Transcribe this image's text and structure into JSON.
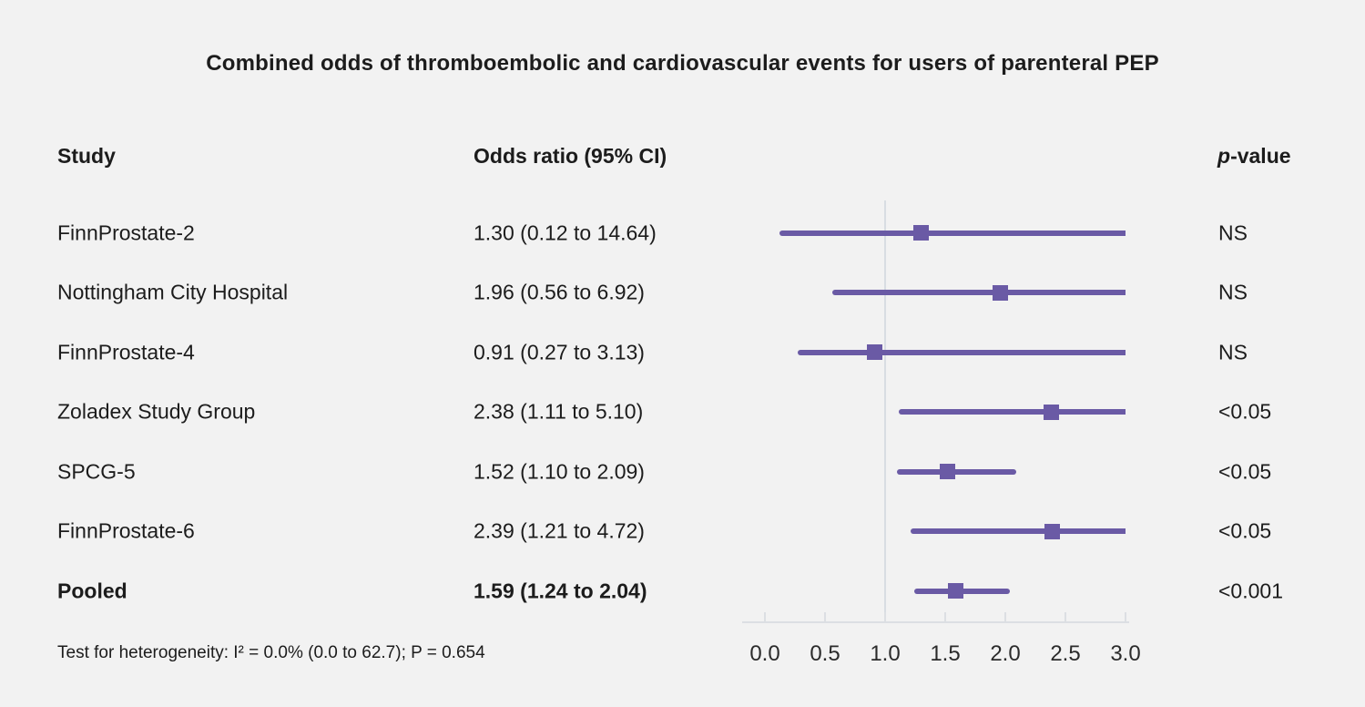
{
  "title": "Combined odds of thromboembolic and cardiovascular events for users of parenteral PEP",
  "columns": {
    "study": "Study",
    "odds": "Odds ratio (95% CI)",
    "pvalue_italic": "p",
    "pvalue_rest": "-value"
  },
  "footnote": "Test for heterogeneity: I² = 0.0% (0.0 to 62.7); P = 0.654",
  "chart_data": {
    "type": "forest",
    "title": "Combined odds of thromboembolic and cardiovascular events for users of parenteral PEP",
    "xlim": [
      0.0,
      3.0
    ],
    "x_ticks": [
      0.0,
      0.5,
      1.0,
      1.5,
      2.0,
      2.5,
      3.0
    ],
    "tick_labels": [
      "0.0",
      "0.5",
      "1.0",
      "1.5",
      "2.0",
      "2.5",
      "3.0"
    ],
    "reference_line": 1.0,
    "grid": false,
    "colors": {
      "line": "#6a5aa5",
      "marker": "#6a5aa5",
      "reference": "#d8dde2",
      "axis": "#dcdfe3",
      "background": "#f2f2f2"
    },
    "studies": [
      {
        "study": "FinnProstate-2",
        "or_text": "1.30 (0.12 to 14.64)",
        "estimate": 1.3,
        "ci_lower": 0.12,
        "ci_upper": 14.64,
        "p_value": "NS",
        "bold": false
      },
      {
        "study": "Nottingham City Hospital",
        "or_text": "1.96 (0.56 to 6.92)",
        "estimate": 1.96,
        "ci_lower": 0.56,
        "ci_upper": 6.92,
        "p_value": "NS",
        "bold": false
      },
      {
        "study": "FinnProstate-4",
        "or_text": "0.91 (0.27 to 3.13)",
        "estimate": 0.91,
        "ci_lower": 0.27,
        "ci_upper": 3.13,
        "p_value": "NS",
        "bold": false
      },
      {
        "study": "Zoladex Study Group",
        "or_text": "2.38 (1.11 to 5.10)",
        "estimate": 2.38,
        "ci_lower": 1.11,
        "ci_upper": 5.1,
        "p_value": "<0.05",
        "bold": false
      },
      {
        "study": "SPCG-5",
        "or_text": "1.52 (1.10 to 2.09)",
        "estimate": 1.52,
        "ci_lower": 1.1,
        "ci_upper": 2.09,
        "p_value": "<0.05",
        "bold": false
      },
      {
        "study": "FinnProstate-6",
        "or_text": "2.39 (1.21 to 4.72)",
        "estimate": 2.39,
        "ci_lower": 1.21,
        "ci_upper": 4.72,
        "p_value": "<0.05",
        "bold": false
      },
      {
        "study": "Pooled",
        "or_text": "1.59 (1.24 to 2.04)",
        "estimate": 1.59,
        "ci_lower": 1.24,
        "ci_upper": 2.04,
        "p_value": "<0.001",
        "bold": true
      }
    ]
  }
}
